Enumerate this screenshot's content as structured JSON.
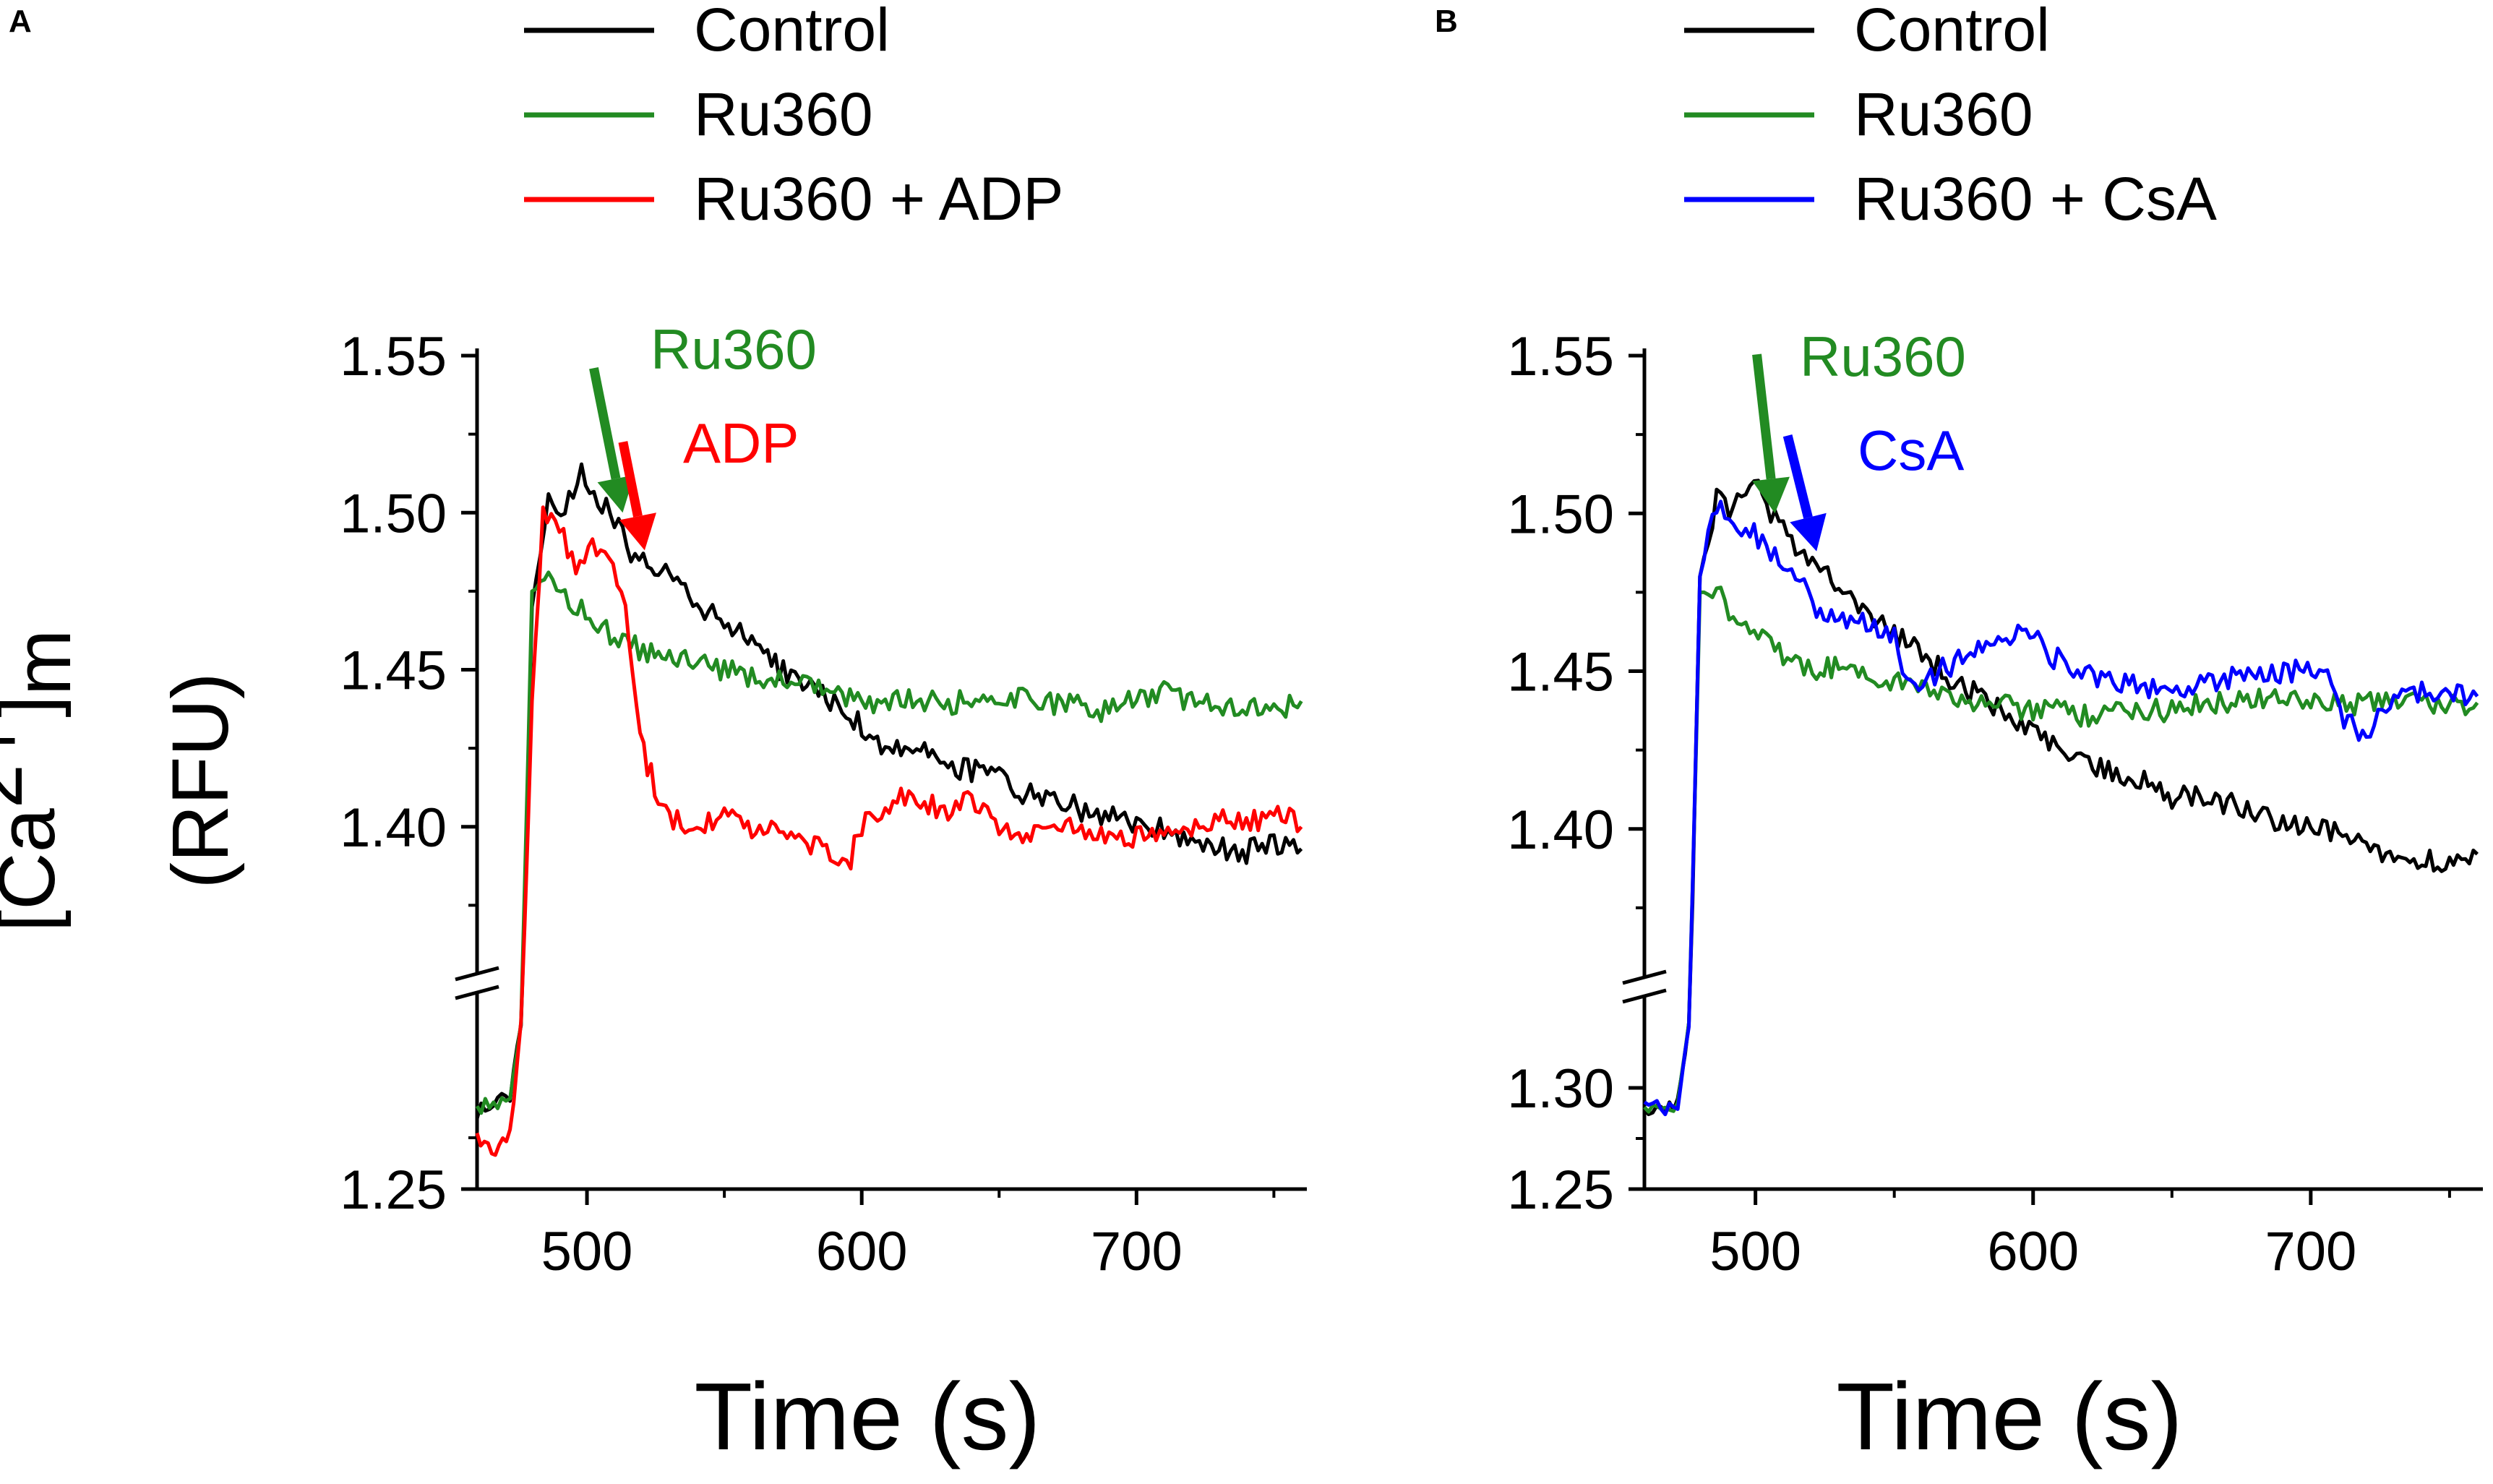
{
  "colors": {
    "control": "#000000",
    "ru360": "#228B22",
    "adp": "#FF0000",
    "csa": "#0000FF"
  },
  "ylabel": {
    "bracket_open": "[Ca",
    "superscript": "2+",
    "bracket_close": "]",
    "subscript": "m",
    "unit": "(RFU)"
  },
  "chart_data": [
    {
      "type": "line",
      "panel": "A",
      "xlabel": "Time (s)",
      "xlim": [
        460,
        762
      ],
      "ylim": [
        1.25,
        1.55
      ],
      "axis_break": "between 1.25 and 1.35 (lower segment 1.25–1.30 compressed)",
      "xticks": [
        500,
        600,
        700
      ],
      "yticks": [
        1.25,
        1.4,
        1.45,
        1.5,
        1.55
      ],
      "ytick_labels": [
        "1.25",
        "1.40",
        "1.45",
        "1.50",
        "1.55"
      ],
      "legend": [
        "Control",
        "Ru360",
        "Ru360 + ADP"
      ],
      "annotations": [
        {
          "text": "Ru360",
          "color": "#228B22",
          "arrow_target": [
            513,
            1.5
          ]
        },
        {
          "text": "ADP",
          "color": "#FF0000",
          "arrow_target": [
            521,
            1.488
          ]
        }
      ],
      "series": [
        {
          "name": "Control",
          "color": "#000000",
          "x": [
            460,
            466,
            472,
            476,
            480,
            486,
            492,
            498,
            504,
            510,
            516,
            522,
            530,
            540,
            550,
            560,
            570,
            580,
            590,
            600,
            610,
            620,
            630,
            640,
            650,
            660,
            670,
            680,
            690,
            700,
            710,
            720,
            730,
            740,
            750,
            760
          ],
          "y": [
            1.288,
            1.292,
            1.295,
            1.33,
            1.47,
            1.505,
            1.5,
            1.512,
            1.505,
            1.498,
            1.488,
            1.485,
            1.48,
            1.47,
            1.465,
            1.46,
            1.45,
            1.445,
            1.44,
            1.432,
            1.425,
            1.425,
            1.42,
            1.418,
            1.415,
            1.41,
            1.41,
            1.405,
            1.403,
            1.4,
            1.4,
            1.395,
            1.393,
            1.392,
            1.395,
            1.393
          ]
        },
        {
          "name": "Ru360",
          "color": "#228B22",
          "x": [
            460,
            466,
            472,
            476,
            480,
            486,
            492,
            498,
            504,
            510,
            516,
            522,
            530,
            540,
            550,
            560,
            570,
            580,
            590,
            600,
            610,
            620,
            630,
            640,
            650,
            660,
            670,
            680,
            690,
            700,
            710,
            720,
            730,
            740,
            750,
            760
          ],
          "y": [
            1.29,
            1.291,
            1.293,
            1.33,
            1.475,
            1.478,
            1.472,
            1.47,
            1.465,
            1.46,
            1.458,
            1.455,
            1.453,
            1.452,
            1.45,
            1.448,
            1.446,
            1.445,
            1.442,
            1.44,
            1.44,
            1.441,
            1.439,
            1.44,
            1.442,
            1.44,
            1.439,
            1.438,
            1.437,
            1.441,
            1.443,
            1.44,
            1.439,
            1.438,
            1.437,
            1.44
          ]
        },
        {
          "name": "Ru360 + ADP",
          "color": "#FF0000",
          "x": [
            460,
            464,
            468,
            472,
            476,
            480,
            484,
            490,
            496,
            502,
            508,
            514,
            518,
            522,
            526,
            530,
            540,
            550,
            560,
            570,
            580,
            590,
            596,
            600,
            610,
            620,
            630,
            640,
            650,
            660,
            670,
            680,
            690,
            700,
            710,
            720,
            730,
            740,
            750,
            760
          ],
          "y": [
            1.276,
            1.27,
            1.268,
            1.278,
            1.33,
            1.44,
            1.5,
            1.495,
            1.48,
            1.49,
            1.488,
            1.47,
            1.44,
            1.42,
            1.41,
            1.402,
            1.4,
            1.405,
            1.398,
            1.4,
            1.395,
            1.392,
            1.39,
            1.4,
            1.408,
            1.41,
            1.405,
            1.41,
            1.4,
            1.398,
            1.402,
            1.398,
            1.396,
            1.397,
            1.4,
            1.398,
            1.402,
            1.4,
            1.405,
            1.4
          ]
        }
      ]
    },
    {
      "type": "line",
      "panel": "B",
      "xlabel": "Time (s)",
      "xlim": [
        460,
        762
      ],
      "ylim": [
        1.25,
        1.55
      ],
      "axis_break": "between 1.30 and 1.35",
      "xticks": [
        500,
        600,
        700
      ],
      "yticks": [
        1.25,
        1.3,
        1.4,
        1.45,
        1.5,
        1.55
      ],
      "ytick_labels": [
        "1.25",
        "1.30",
        "1.40",
        "1.45",
        "1.50",
        "1.55"
      ],
      "legend": [
        "Control",
        "Ru360",
        "Ru360 + CsA"
      ],
      "annotations": [
        {
          "text": "Ru360",
          "color": "#228B22",
          "arrow_target": [
            507,
            1.5
          ]
        },
        {
          "text": "CsA",
          "color": "#0000FF",
          "arrow_target": [
            522,
            1.488
          ]
        }
      ],
      "series": [
        {
          "name": "Control",
          "color": "#000000",
          "x": [
            460,
            466,
            472,
            476,
            480,
            486,
            492,
            498,
            504,
            510,
            516,
            522,
            530,
            540,
            550,
            560,
            570,
            580,
            590,
            600,
            610,
            620,
            630,
            640,
            650,
            660,
            670,
            680,
            690,
            700,
            710,
            720,
            730,
            740,
            750,
            760
          ],
          "y": [
            1.288,
            1.29,
            1.292,
            1.33,
            1.48,
            1.505,
            1.5,
            1.512,
            1.502,
            1.495,
            1.488,
            1.485,
            1.478,
            1.47,
            1.462,
            1.455,
            1.448,
            1.442,
            1.438,
            1.43,
            1.425,
            1.42,
            1.418,
            1.415,
            1.41,
            1.41,
            1.408,
            1.405,
            1.402,
            1.4,
            1.398,
            1.395,
            1.392,
            1.39,
            1.39,
            1.392
          ]
        },
        {
          "name": "Ru360",
          "color": "#228B22",
          "x": [
            460,
            466,
            472,
            476,
            480,
            486,
            492,
            498,
            504,
            510,
            516,
            522,
            530,
            540,
            550,
            560,
            570,
            580,
            590,
            600,
            610,
            620,
            630,
            640,
            650,
            660,
            670,
            680,
            690,
            700,
            710,
            720,
            730,
            740,
            750,
            760
          ],
          "y": [
            1.29,
            1.289,
            1.291,
            1.33,
            1.475,
            1.475,
            1.468,
            1.465,
            1.46,
            1.455,
            1.453,
            1.45,
            1.452,
            1.448,
            1.446,
            1.445,
            1.443,
            1.44,
            1.439,
            1.438,
            1.437,
            1.436,
            1.438,
            1.437,
            1.438,
            1.439,
            1.44,
            1.441,
            1.442,
            1.44,
            1.439,
            1.44,
            1.441,
            1.44,
            1.439,
            1.44
          ]
        },
        {
          "name": "Ru360 + CsA",
          "color": "#0000FF",
          "x": [
            460,
            466,
            472,
            476,
            480,
            486,
            492,
            498,
            504,
            510,
            516,
            522,
            530,
            540,
            550,
            556,
            566,
            576,
            586,
            596,
            606,
            616,
            626,
            636,
            646,
            656,
            666,
            676,
            686,
            696,
            706,
            712,
            720,
            730,
            740,
            750,
            760
          ],
          "y": [
            1.292,
            1.29,
            1.292,
            1.33,
            1.48,
            1.502,
            1.498,
            1.495,
            1.49,
            1.485,
            1.478,
            1.47,
            1.468,
            1.465,
            1.46,
            1.445,
            1.45,
            1.455,
            1.458,
            1.465,
            1.455,
            1.45,
            1.448,
            1.446,
            1.444,
            1.445,
            1.447,
            1.448,
            1.45,
            1.45,
            1.45,
            1.435,
            1.43,
            1.442,
            1.443,
            1.444,
            1.442
          ]
        }
      ]
    }
  ]
}
